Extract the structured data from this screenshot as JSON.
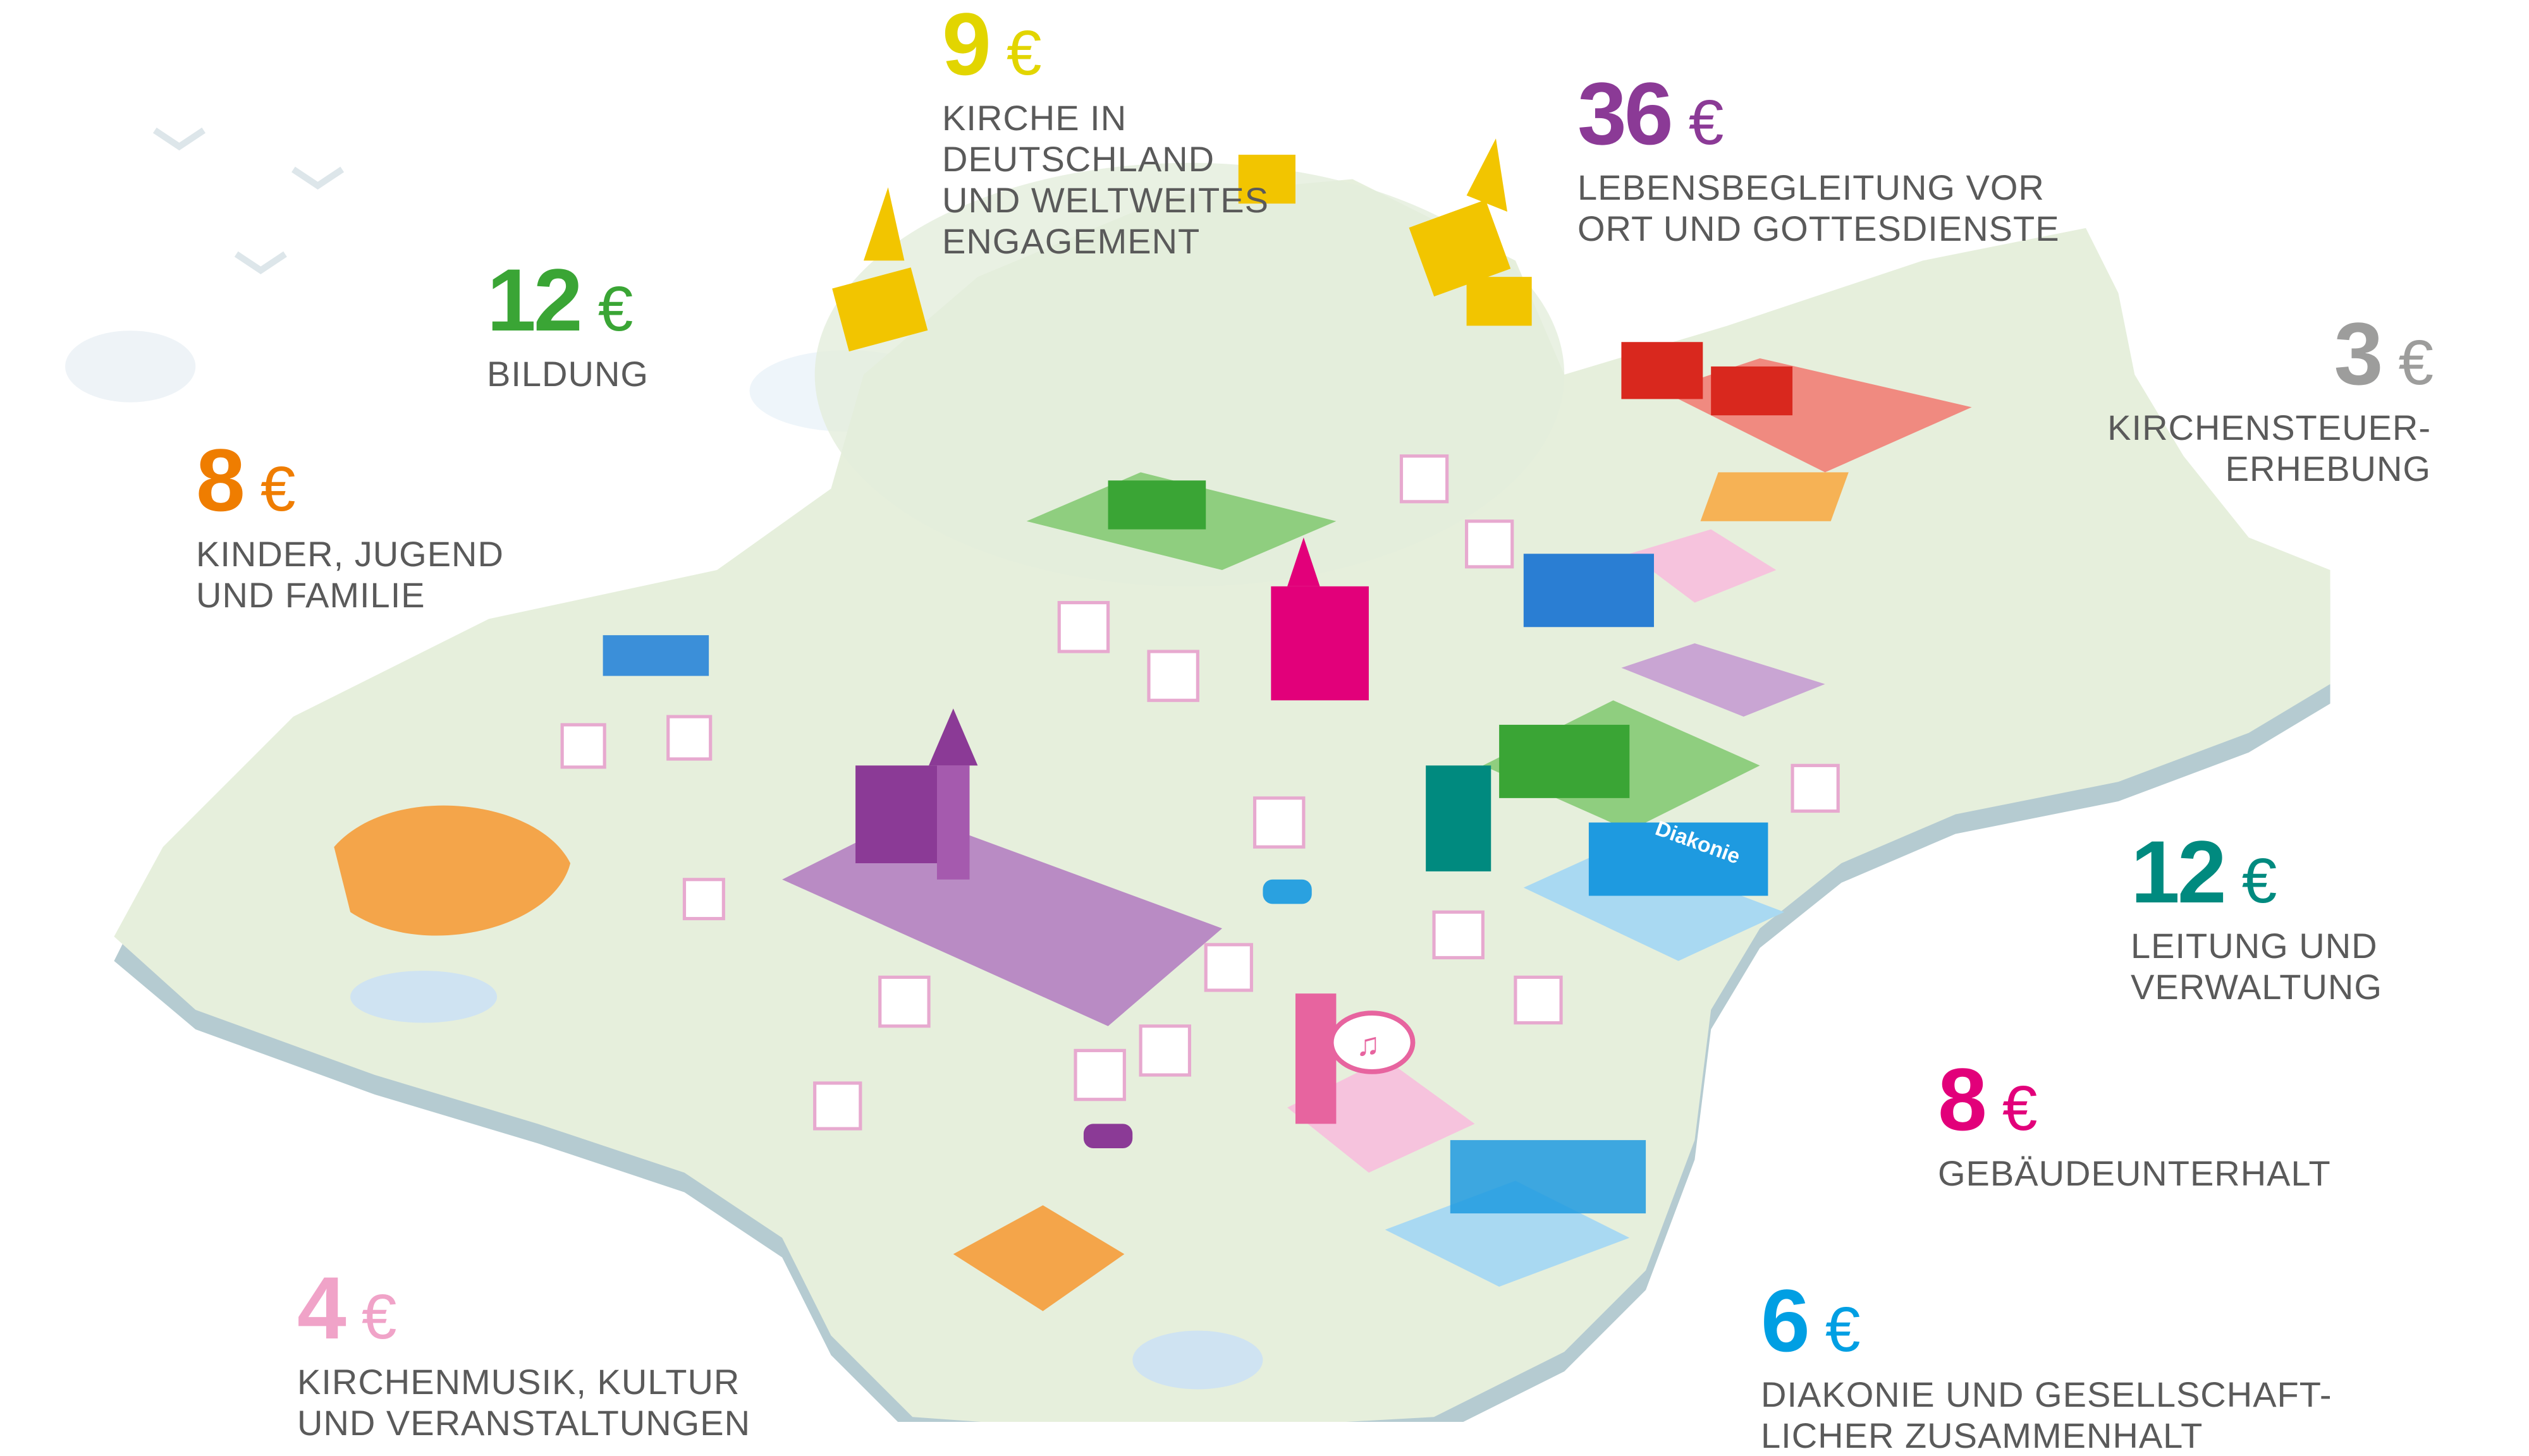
{
  "categories": [
    {
      "id": "kirche-deutschland",
      "amount": "9",
      "currency": "€",
      "color": "#e2d500",
      "label_lines": [
        "KIRCHE IN",
        "DEUTSCHLAND",
        "UND WELTWEITES",
        "ENGAGEMENT"
      ]
    },
    {
      "id": "lebensbegleitung",
      "amount": "36",
      "currency": "€",
      "color": "#8b3a96",
      "label_lines": [
        "LEBENSBEGLEITUNG VOR",
        "ORT UND GOTTESDIENSTE"
      ]
    },
    {
      "id": "bildung",
      "amount": "12",
      "currency": "€",
      "color": "#3aa535",
      "label_lines": [
        "BILDUNG"
      ]
    },
    {
      "id": "kirchensteuererhebung",
      "amount": "3",
      "currency": "€",
      "color": "#9d9d9c",
      "label_lines": [
        "KIRCHENSTEUER-",
        "ERHEBUNG"
      ]
    },
    {
      "id": "kinder-jugend-familie",
      "amount": "8",
      "currency": "€",
      "color": "#ef7d00",
      "label_lines": [
        "KINDER, JUGEND",
        "UND FAMILIE"
      ]
    },
    {
      "id": "leitung-verwaltung",
      "amount": "12",
      "currency": "€",
      "color": "#008a7f",
      "label_lines": [
        "LEITUNG UND",
        "VERWALTUNG"
      ]
    },
    {
      "id": "gebaeudeunterhalt",
      "amount": "8",
      "currency": "€",
      "color": "#e2007a",
      "label_lines": [
        "GEBÄUDEUNTERHALT"
      ]
    },
    {
      "id": "diakonie",
      "amount": "6",
      "currency": "€",
      "color": "#009fe3",
      "label_lines": [
        "DIAKONIE UND GESELLSCHAFT-",
        "LICHER ZUSAMMENHALT"
      ]
    },
    {
      "id": "kirchenmusik",
      "amount": "4",
      "currency": "€",
      "color": "#f0a3c8",
      "label_lines": [
        "KIRCHENMUSIK, KULTUR",
        "UND VERANSTALTUNGEN"
      ]
    }
  ],
  "map": {
    "diakonie_sign": "Diakonie",
    "land_color": "#e6efdc",
    "coast_color": "#b3c9cf"
  }
}
